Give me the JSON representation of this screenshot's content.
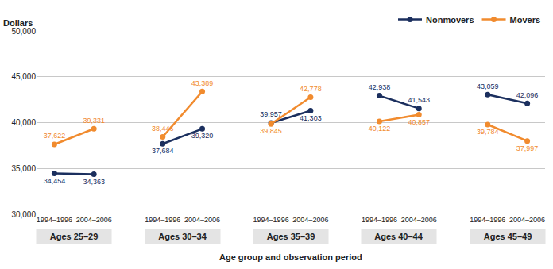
{
  "chart_data": {
    "type": "line",
    "y_label": "Dollars",
    "x_label": "Age group and observation period",
    "categories": [
      "1994–1996",
      "2004–2006",
      "1994–1996",
      "2004–2006",
      "1994–1996",
      "2004–2006",
      "1994–1996",
      "2004–2006",
      "1994–1996",
      "2004–2006"
    ],
    "groups": [
      "Ages 25–29",
      "Ages 30–34",
      "Ages 35–39",
      "Ages 40–44",
      "Ages 45–49"
    ],
    "series": [
      {
        "name": "Nonmovers",
        "color": "#1b2f5e",
        "marker": "circle",
        "line_style": "solid",
        "values": [
          34454,
          34363,
          37684,
          39320,
          39957,
          41303,
          42938,
          41543,
          43059,
          42096
        ],
        "value_labels": [
          "34,454",
          "34,363",
          "37,684",
          "39,320",
          "39,957",
          "41,303",
          "42,938",
          "41,543",
          "43,059",
          "42,096"
        ]
      },
      {
        "name": "Movers",
        "color": "#f18b2e",
        "marker": "circle",
        "line_style": "solid",
        "values": [
          37622,
          39331,
          38446,
          43389,
          39845,
          42778,
          40122,
          40857,
          39784,
          37997
        ],
        "value_labels": [
          "37,622",
          "39,331",
          "38,446",
          "43,389",
          "39,845",
          "42,778",
          "40,122",
          "40,857",
          "39,784",
          "37,997"
        ]
      }
    ],
    "ylim": [
      30000,
      50000
    ],
    "yticks": [
      {
        "value": 30000,
        "label": "30,000"
      },
      {
        "value": 35000,
        "label": "35,000"
      },
      {
        "value": 40000,
        "label": "40,000"
      },
      {
        "value": 45000,
        "label": "45,000"
      },
      {
        "value": 50000,
        "label": "50,000"
      }
    ],
    "grid": true,
    "legend": "top right",
    "data_labels": true
  }
}
